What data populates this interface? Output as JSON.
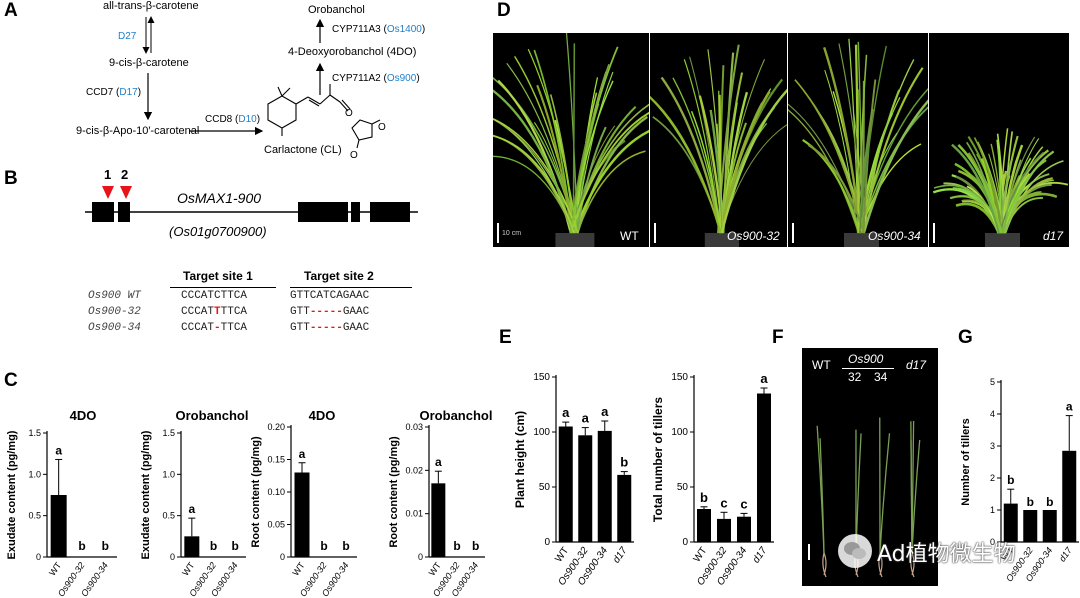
{
  "panels": {
    "A": "A",
    "B": "B",
    "C": "C",
    "D": "D",
    "E": "E",
    "F": "F",
    "G": "G"
  },
  "pathway": {
    "compounds": {
      "all_trans": "all-trans-β-carotene",
      "nine_cis": "9-cis-β-carotene",
      "apo": "9-cis-β-Apo-10′-carotenal",
      "cl": "Carlactone (CL)",
      "fourdo": "4-Deoxyorobanchol (4DO)",
      "orobanchol": "Orobanchol"
    },
    "enzymes": {
      "d27": "D27",
      "ccd7": "CCD7 (",
      "ccd7_gene": "D17",
      "ccd8": "CCD8 (",
      "ccd8_gene": "D10",
      "cyp2": "CYP711A2 (",
      "cyp2_gene": "Os900",
      "cyp3": "CYP711A3 (",
      "cyp3_gene": "Os1400",
      "close": ")"
    }
  },
  "gene": {
    "name": "OsMAX1-900",
    "locus": "(Os01g0700900)",
    "site1_marker": "1",
    "site2_marker": "2",
    "col1": "Target site 1",
    "col2": "Target site 2",
    "rows": [
      {
        "label": "Os900 WT",
        "s1a": "CCCATCTTCA",
        "s1b": "",
        "s1c": "",
        "s2a": "GTTCATCAGAAC",
        "s2b": "",
        "s2c": ""
      },
      {
        "label": "Os900-32",
        "s1a": "CCCAT",
        "s1b": "T",
        "s1c": "TTCA",
        "s2a": "GTT",
        "s2b": "-----",
        "s2c": "GAAC"
      },
      {
        "label": "Os900-34",
        "s1a": "CCCAT",
        "s1b": "-",
        "s1c": "TTCA",
        "s2a": "GTT",
        "s2b": "-----",
        "s2c": "GAAC"
      }
    ]
  },
  "photo_labels": {
    "scale": "10 cm",
    "wt": "WT",
    "m32": "Os900-32",
    "m34": "Os900-34",
    "d17": "d17"
  },
  "F_labels": {
    "wt": "WT",
    "os900": "Os900",
    "n32": "32",
    "n34": "34",
    "d17": "d17"
  },
  "watermark": "Ad植物微生物",
  "colors": {
    "blue": "#1f7fc8",
    "red": "#e8141b",
    "bar": "#000000"
  },
  "chart_data": [
    {
      "id": "C1",
      "type": "bar",
      "title": "4DO",
      "ylabel": "Exudate content (pg/mg)",
      "categories": [
        "WT",
        "Os900-32",
        "Os900-34"
      ],
      "values": [
        0.75,
        0,
        0
      ],
      "errors": [
        0.43,
        0,
        0
      ],
      "letters": [
        "a",
        "b",
        "b"
      ],
      "ylim": [
        0,
        1.5
      ],
      "yticks": [
        0,
        0.5,
        1.0,
        1.5
      ],
      "ytick_labels": [
        "0",
        "0.5",
        "1.0",
        "1.5"
      ]
    },
    {
      "id": "C2",
      "type": "bar",
      "title": "Orobanchol",
      "ylabel": "Exudate content (pg/mg)",
      "categories": [
        "WT",
        "Os900-32",
        "Os900-34"
      ],
      "values": [
        0.25,
        0,
        0
      ],
      "errors": [
        0.22,
        0,
        0
      ],
      "letters": [
        "a",
        "b",
        "b"
      ],
      "ylim": [
        0,
        1.5
      ],
      "yticks": [
        0,
        0.5,
        1.0,
        1.5
      ],
      "ytick_labels": [
        "0",
        "0.5",
        "1.0",
        "1.5"
      ]
    },
    {
      "id": "C3",
      "type": "bar",
      "title": "4DO",
      "ylabel": "Root content (pg/mg)",
      "categories": [
        "WT",
        "Os900-32",
        "Os900-34"
      ],
      "values": [
        0.13,
        0,
        0
      ],
      "errors": [
        0.015,
        0,
        0
      ],
      "letters": [
        "a",
        "b",
        "b"
      ],
      "ylim": [
        0,
        0.2
      ],
      "yticks": [
        0,
        0.05,
        0.1,
        0.15,
        0.2
      ],
      "ytick_labels": [
        "0",
        "0.05",
        "0.10",
        "0.15",
        "0.20"
      ]
    },
    {
      "id": "C4",
      "type": "bar",
      "title": "Orobanchol",
      "ylabel": "Root content (pg/mg)",
      "categories": [
        "WT",
        "Os900-32",
        "Os900-34"
      ],
      "values": [
        0.017,
        0,
        0
      ],
      "errors": [
        0.0028,
        0,
        0
      ],
      "letters": [
        "a",
        "b",
        "b"
      ],
      "ylim": [
        0,
        0.03
      ],
      "yticks": [
        0,
        0.01,
        0.02,
        0.03
      ],
      "ytick_labels": [
        "0",
        "0.01",
        "0.02",
        "0.03"
      ]
    },
    {
      "id": "E1",
      "type": "bar",
      "title": "",
      "ylabel": "Plant height (cm)",
      "categories": [
        "WT",
        "Os900-32",
        "Os900-34",
        "d17"
      ],
      "values": [
        105,
        97,
        101,
        61
      ],
      "errors": [
        4,
        7,
        9,
        3
      ],
      "letters": [
        "a",
        "a",
        "a",
        "b"
      ],
      "ylim": [
        0,
        150
      ],
      "yticks": [
        0,
        50,
        100,
        150
      ],
      "ytick_labels": [
        "0",
        "50",
        "100",
        "150"
      ]
    },
    {
      "id": "E2",
      "type": "bar",
      "title": "",
      "ylabel": "Total number of tillers",
      "categories": [
        "WT",
        "Os900-32",
        "Os900-34",
        "d17"
      ],
      "values": [
        30,
        21,
        23,
        135
      ],
      "errors": [
        2,
        6,
        3,
        5
      ],
      "letters": [
        "b",
        "c",
        "c",
        "a"
      ],
      "ylim": [
        0,
        150
      ],
      "yticks": [
        0,
        50,
        100,
        150
      ],
      "ytick_labels": [
        "0",
        "50",
        "100",
        "150"
      ]
    },
    {
      "id": "G1",
      "type": "bar",
      "title": "",
      "ylabel": "Number of tillers",
      "categories": [
        "WT",
        "Os900-32",
        "Os900-34",
        "d17"
      ],
      "values": [
        1.2,
        1.0,
        1.0,
        2.85
      ],
      "errors": [
        0.45,
        0,
        0,
        1.1
      ],
      "letters": [
        "b",
        "b",
        "b",
        "a"
      ],
      "ylim": [
        0,
        5
      ],
      "yticks": [
        0,
        1,
        2,
        3,
        4,
        5
      ],
      "ytick_labels": [
        "0",
        "1",
        "2",
        "3",
        "4",
        "5"
      ]
    }
  ]
}
